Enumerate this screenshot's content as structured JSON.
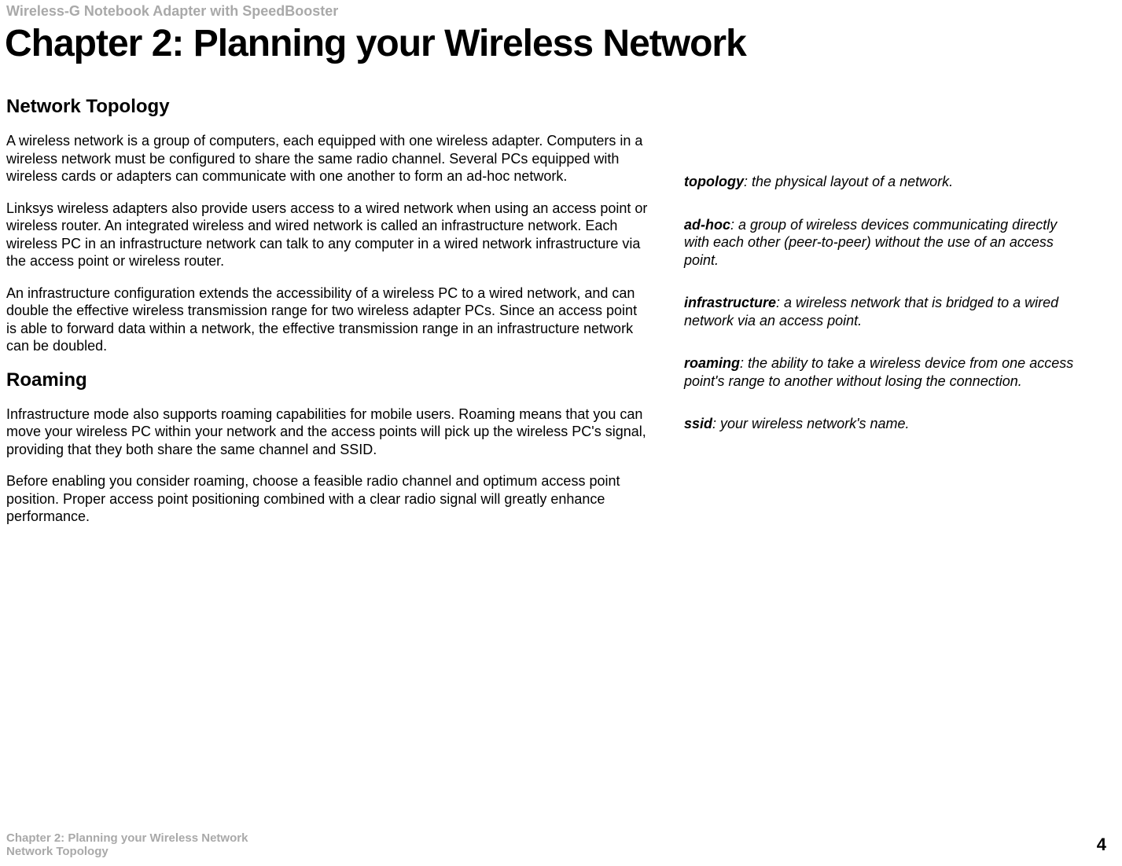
{
  "header": {
    "product": "Wireless-G Notebook Adapter with SpeedBooster"
  },
  "chapter": {
    "title": "Chapter 2: Planning your Wireless Network"
  },
  "sections": {
    "topology": {
      "heading": "Network Topology",
      "p1": "A wireless network is a group of computers, each equipped with one wireless adapter.  Computers in a wireless network must be configured to share the same radio channel. Several PCs equipped with wireless cards or adapters can communicate with one another to form an ad-hoc network.",
      "p2": "Linksys wireless adapters also provide users access to a wired network when using an access point or wireless router.  An integrated wireless and wired network is called an infrastructure network. Each wireless PC in an infrastructure network can talk to any computer in a wired network infrastructure via the access point or wireless router.",
      "p3": "An infrastructure configuration extends the accessibility of a wireless PC to a wired network, and can double the effective wireless transmission range for two wireless adapter PCs.  Since an access point is able to forward data within a network, the effective transmission range in an infrastructure network can be doubled."
    },
    "roaming": {
      "heading": "Roaming",
      "p1": "Infrastructure mode also supports roaming capabilities for mobile users. Roaming means that you can move your wireless PC within your network and the access points will pick up the wireless PC's signal, providing that they both share the same channel and SSID.",
      "p2": "Before enabling you consider roaming, choose a feasible radio channel and optimum access point position. Proper access point positioning combined with a clear radio signal will greatly enhance performance."
    }
  },
  "sidebar": {
    "topology": {
      "term": "topology",
      "def": ": the physical layout of a network."
    },
    "adhoc": {
      "term": "ad-hoc",
      "def": ": a group of wireless devices communicating directly with each other (peer-to-peer) without the use of an access point."
    },
    "infrastructure": {
      "term": "infrastructure",
      "def": ": a wireless network that is bridged to a wired network via an access point."
    },
    "roaming": {
      "term": "roaming",
      "def": ": the ability to take a wireless device from one access point's range to another without losing the connection."
    },
    "ssid": {
      "term": "ssid",
      "def": ": your wireless network's name."
    }
  },
  "footer": {
    "line1": "Chapter 2: Planning your Wireless Network",
    "line2": "Network Topology",
    "page": "4"
  }
}
